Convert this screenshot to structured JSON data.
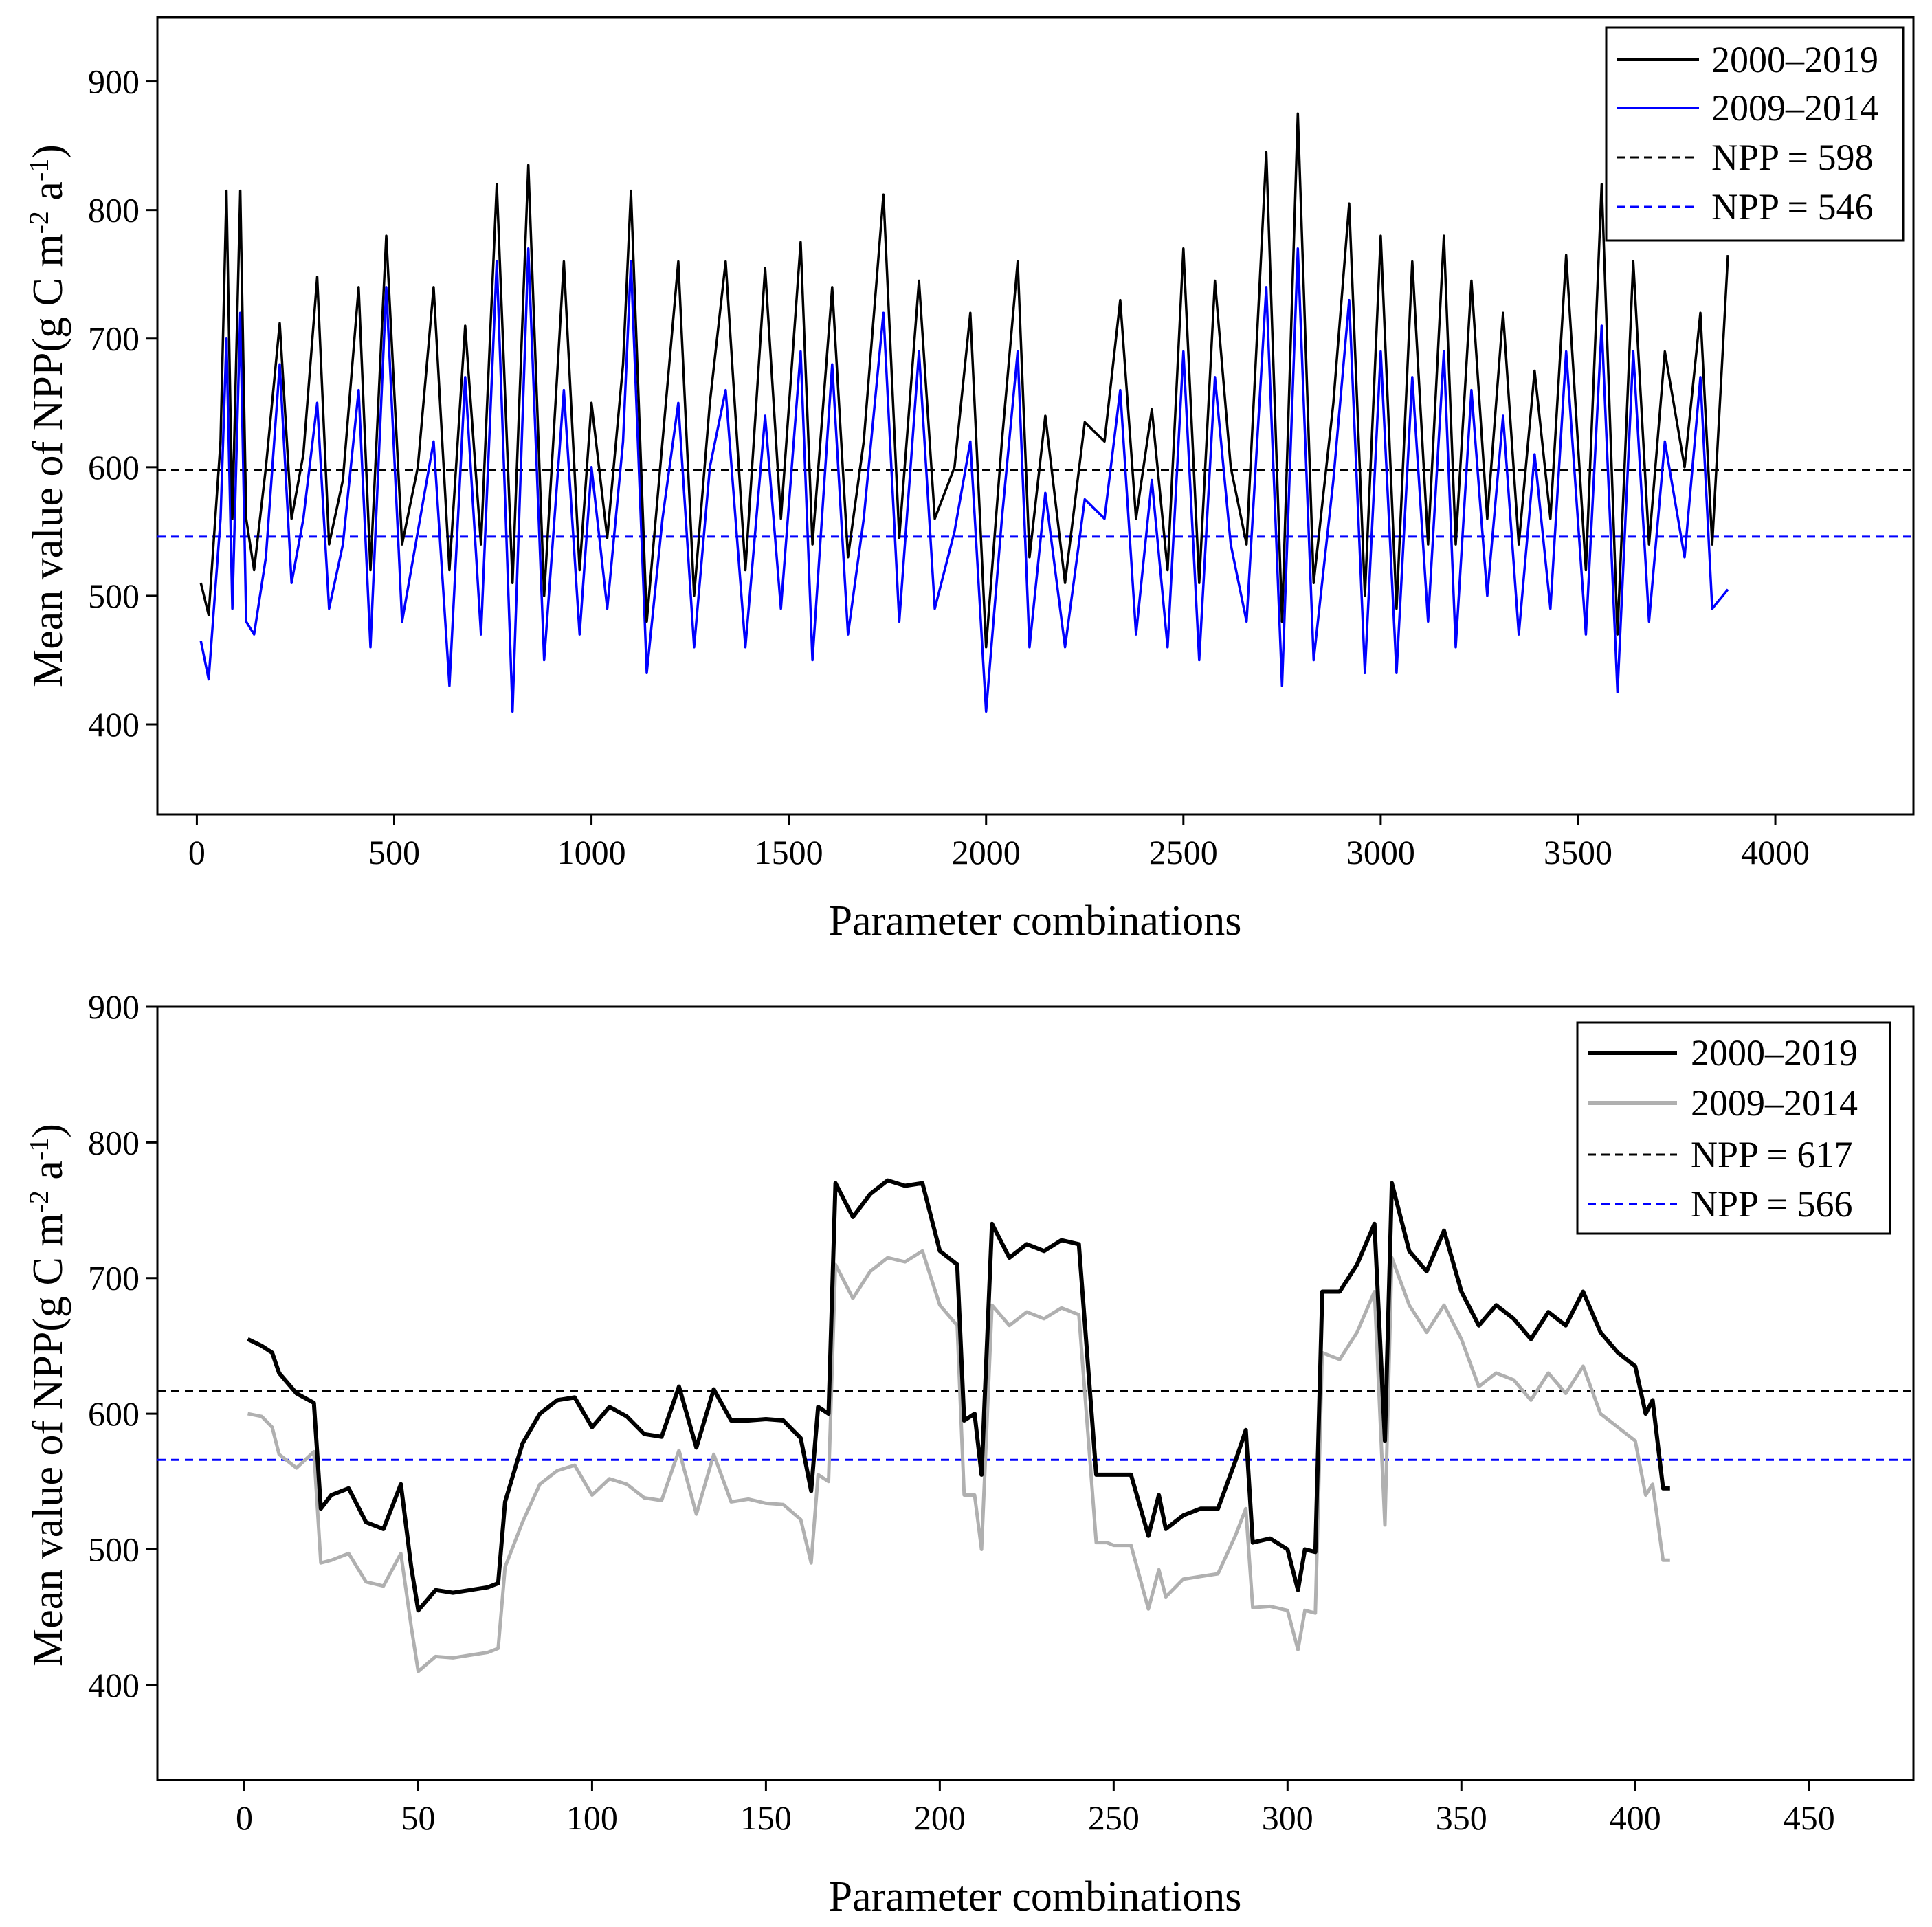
{
  "chart_data": [
    {
      "type": "line",
      "xlabel": "Parameter combinations",
      "ylabel": "Mean value of NPP(g C m",
      "ylabel_sup1": "-2",
      "ylabel_mid": " a",
      "ylabel_sup2": "-1",
      "ylabel_end": ")",
      "xlim": [
        -100,
        4350
      ],
      "ylim": [
        330,
        950
      ],
      "xticks": [
        0,
        500,
        1000,
        1500,
        2000,
        2500,
        3000,
        3500,
        4000
      ],
      "yticks": [
        400,
        500,
        600,
        700,
        800,
        900
      ],
      "legend": [
        "2000–2019",
        "2009–2014",
        "NPP = 598",
        "NPP = 546"
      ],
      "legend_position": "top-right",
      "colors": {
        "series1": "#000000",
        "series2": "#0000ff",
        "ref1": "#000000",
        "ref2": "#0000ff"
      },
      "reference_lines": [
        {
          "name": "NPP = 598",
          "y": 598
        },
        {
          "name": "NPP = 546",
          "y": 546
        }
      ],
      "series": [
        {
          "name": "2000–2019",
          "x": [
            10,
            30,
            60,
            75,
            90,
            110,
            125,
            145,
            175,
            210,
            240,
            270,
            305,
            335,
            370,
            410,
            440,
            480,
            520,
            560,
            600,
            640,
            680,
            720,
            760,
            800,
            840,
            880,
            930,
            970,
            1000,
            1040,
            1080,
            1100,
            1140,
            1180,
            1220,
            1260,
            1300,
            1340,
            1390,
            1440,
            1480,
            1530,
            1560,
            1610,
            1650,
            1690,
            1740,
            1780,
            1830,
            1870,
            1920,
            1960,
            2000,
            2040,
            2080,
            2110,
            2150,
            2200,
            2250,
            2300,
            2340,
            2380,
            2420,
            2460,
            2500,
            2540,
            2580,
            2620,
            2660,
            2710,
            2750,
            2790,
            2830,
            2880,
            2920,
            2960,
            3000,
            3040,
            3080,
            3120,
            3160,
            3190,
            3230,
            3270,
            3310,
            3350,
            3390,
            3430,
            3470,
            3520,
            3560,
            3600,
            3640,
            3680,
            3720,
            3770,
            3810,
            3840,
            3880
          ],
          "values": [
            510,
            485,
            620,
            815,
            560,
            815,
            560,
            520,
            600,
            712,
            560,
            610,
            748,
            540,
            590,
            740,
            520,
            780,
            540,
            600,
            740,
            520,
            710,
            540,
            820,
            510,
            835,
            500,
            760,
            520,
            650,
            545,
            680,
            815,
            480,
            620,
            760,
            500,
            650,
            760,
            520,
            755,
            560,
            775,
            540,
            740,
            530,
            620,
            812,
            545,
            745,
            560,
            600,
            720,
            460,
            620,
            760,
            530,
            640,
            510,
            635,
            620,
            730,
            560,
            645,
            520,
            770,
            510,
            745,
            600,
            540,
            845,
            480,
            875,
            510,
            650,
            805,
            500,
            780,
            490,
            760,
            540,
            780,
            540,
            745,
            560,
            720,
            540,
            675,
            560,
            765,
            520,
            820,
            470,
            760,
            540,
            690,
            600,
            720,
            540,
            765
          ]
        },
        {
          "name": "2009–2014",
          "x": [
            10,
            30,
            60,
            75,
            90,
            110,
            125,
            145,
            175,
            210,
            240,
            270,
            305,
            335,
            370,
            410,
            440,
            480,
            520,
            560,
            600,
            640,
            680,
            720,
            760,
            800,
            840,
            880,
            930,
            970,
            1000,
            1040,
            1080,
            1100,
            1140,
            1180,
            1220,
            1260,
            1300,
            1340,
            1390,
            1440,
            1480,
            1530,
            1560,
            1610,
            1650,
            1690,
            1740,
            1780,
            1830,
            1870,
            1920,
            1960,
            2000,
            2040,
            2080,
            2110,
            2150,
            2200,
            2250,
            2300,
            2340,
            2380,
            2420,
            2460,
            2500,
            2540,
            2580,
            2620,
            2660,
            2710,
            2750,
            2790,
            2830,
            2880,
            2920,
            2960,
            3000,
            3040,
            3080,
            3120,
            3160,
            3190,
            3230,
            3270,
            3310,
            3350,
            3390,
            3430,
            3470,
            3520,
            3560,
            3600,
            3640,
            3680,
            3720,
            3770,
            3810,
            3840,
            3880
          ],
          "values": [
            465,
            435,
            560,
            700,
            490,
            720,
            480,
            470,
            530,
            680,
            510,
            560,
            650,
            490,
            540,
            660,
            460,
            740,
            480,
            550,
            620,
            430,
            670,
            470,
            760,
            410,
            770,
            450,
            660,
            470,
            600,
            490,
            620,
            760,
            440,
            560,
            650,
            460,
            600,
            660,
            460,
            640,
            490,
            690,
            450,
            680,
            470,
            560,
            720,
            480,
            690,
            490,
            550,
            620,
            410,
            560,
            690,
            460,
            580,
            460,
            575,
            560,
            660,
            470,
            590,
            460,
            690,
            450,
            670,
            540,
            480,
            740,
            430,
            770,
            450,
            590,
            730,
            440,
            690,
            440,
            670,
            480,
            690,
            460,
            660,
            500,
            640,
            470,
            610,
            490,
            690,
            470,
            710,
            425,
            690,
            480,
            620,
            530,
            670,
            490,
            505
          ]
        }
      ]
    },
    {
      "type": "line",
      "xlabel": "Parameter combinations",
      "ylabel": "Mean value of NPP(g C m",
      "ylabel_sup1": "-2",
      "ylabel_mid": " a",
      "ylabel_sup2": "-1",
      "ylabel_end": ")",
      "xlim": [
        -25,
        480
      ],
      "ylim": [
        330,
        900
      ],
      "xticks": [
        0,
        50,
        100,
        150,
        200,
        250,
        300,
        350,
        400,
        450
      ],
      "yticks": [
        400,
        500,
        600,
        700,
        800,
        900
      ],
      "legend": [
        "2000–2019",
        "2009–2014",
        "NPP = 617",
        "NPP = 566"
      ],
      "legend_position": "top-right",
      "colors": {
        "series1": "#000000",
        "series2": "#b0b0b0",
        "ref1": "#000000",
        "ref2": "#0000ff"
      },
      "reference_lines": [
        {
          "name": "NPP = 617",
          "y": 617
        },
        {
          "name": "NPP = 566",
          "y": 566
        }
      ],
      "series": [
        {
          "name": "2000–2019",
          "x": [
            1,
            5,
            8,
            10,
            15,
            20,
            22,
            25,
            30,
            35,
            40,
            45,
            48,
            50,
            55,
            60,
            65,
            70,
            73,
            75,
            80,
            85,
            90,
            95,
            100,
            105,
            110,
            115,
            120,
            125,
            130,
            135,
            140,
            145,
            150,
            155,
            160,
            163,
            165,
            168,
            170,
            175,
            180,
            185,
            190,
            195,
            200,
            205,
            207,
            210,
            212,
            215,
            220,
            225,
            230,
            235,
            240,
            245,
            248,
            250,
            255,
            260,
            263,
            265,
            270,
            275,
            280,
            285,
            288,
            290,
            295,
            300,
            303,
            305,
            308,
            310,
            315,
            320,
            325,
            328,
            330,
            335,
            340,
            345,
            350,
            355,
            360,
            365,
            370,
            375,
            380,
            385,
            390,
            395,
            400,
            403,
            405,
            408,
            410
          ],
          "values": [
            655,
            650,
            645,
            630,
            615,
            608,
            530,
            540,
            545,
            520,
            515,
            548,
            487,
            455,
            470,
            468,
            470,
            472,
            475,
            535,
            578,
            600,
            610,
            612,
            590,
            605,
            598,
            585,
            583,
            620,
            575,
            618,
            595,
            595,
            596,
            595,
            582,
            543,
            605,
            600,
            770,
            745,
            762,
            772,
            768,
            770,
            720,
            710,
            595,
            600,
            555,
            740,
            715,
            725,
            720,
            728,
            725,
            555,
            555,
            555,
            555,
            510,
            540,
            515,
            525,
            530,
            530,
            565,
            588,
            505,
            508,
            500,
            470,
            500,
            498,
            690,
            690,
            710,
            740,
            580,
            770,
            720,
            705,
            735,
            690,
            665,
            680,
            670,
            655,
            675,
            665,
            690,
            660,
            645,
            635,
            600,
            610,
            545,
            545
          ]
        },
        {
          "name": "2009–2014",
          "x": [
            1,
            5,
            8,
            10,
            15,
            20,
            22,
            25,
            30,
            35,
            40,
            45,
            48,
            50,
            55,
            60,
            65,
            70,
            73,
            75,
            80,
            85,
            90,
            95,
            100,
            105,
            110,
            115,
            120,
            125,
            130,
            135,
            140,
            145,
            150,
            155,
            160,
            163,
            165,
            168,
            170,
            175,
            180,
            185,
            190,
            195,
            200,
            205,
            207,
            210,
            212,
            215,
            220,
            225,
            230,
            235,
            240,
            245,
            248,
            250,
            255,
            260,
            263,
            265,
            270,
            275,
            280,
            285,
            288,
            290,
            295,
            300,
            303,
            305,
            308,
            310,
            315,
            320,
            325,
            328,
            330,
            335,
            340,
            345,
            350,
            355,
            360,
            365,
            370,
            375,
            380,
            385,
            390,
            395,
            400,
            403,
            405,
            408,
            410
          ],
          "values": [
            600,
            598,
            590,
            570,
            560,
            572,
            490,
            492,
            497,
            476,
            473,
            497,
            443,
            410,
            421,
            420,
            422,
            424,
            427,
            487,
            520,
            548,
            558,
            562,
            540,
            552,
            548,
            538,
            536,
            573,
            526,
            570,
            535,
            537,
            534,
            533,
            522,
            490,
            555,
            550,
            710,
            685,
            705,
            715,
            712,
            720,
            680,
            665,
            540,
            540,
            500,
            680,
            665,
            675,
            670,
            678,
            673,
            505,
            505,
            503,
            503,
            456,
            485,
            465,
            478,
            480,
            482,
            510,
            530,
            457,
            458,
            455,
            426,
            455,
            453,
            645,
            640,
            660,
            690,
            518,
            715,
            680,
            660,
            680,
            655,
            620,
            630,
            625,
            610,
            630,
            615,
            635,
            600,
            590,
            580,
            540,
            548,
            492,
            492
          ]
        }
      ]
    }
  ]
}
